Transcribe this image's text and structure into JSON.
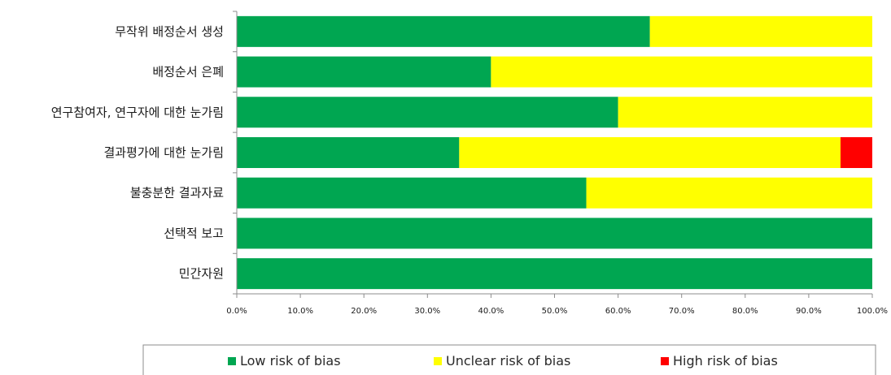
{
  "chart_data": {
    "type": "bar",
    "orientation": "horizontal",
    "stacked": true,
    "categories": [
      "무작위 배정순서 생성",
      "배정순서 은폐",
      "연구참여자, 연구자에 대한 눈가림",
      "결과평가에 대한 눈가림",
      "불충분한 결과자료",
      "선택적 보고",
      "민간자원"
    ],
    "series": [
      {
        "name": "Low risk of bias",
        "color": "#00a651",
        "values": [
          65,
          40,
          60,
          35,
          55,
          100,
          100
        ]
      },
      {
        "name": "Unclear risk of bias",
        "color": "#ffff00",
        "values": [
          35,
          60,
          40,
          60,
          45,
          0,
          0
        ]
      },
      {
        "name": "High risk of bias",
        "color": "#ff0000",
        "values": [
          0,
          0,
          0,
          5,
          0,
          0,
          0
        ]
      }
    ],
    "xlim": [
      0,
      100
    ],
    "x_ticks": [
      "0.0%",
      "10.0%",
      "20.0%",
      "30.0%",
      "40.0%",
      "50.0%",
      "60.0%",
      "70.0%",
      "80.0%",
      "90.0%",
      "100.0%"
    ],
    "title": "",
    "xlabel": "",
    "ylabel": "",
    "grid": false,
    "legend_position": "bottom"
  }
}
